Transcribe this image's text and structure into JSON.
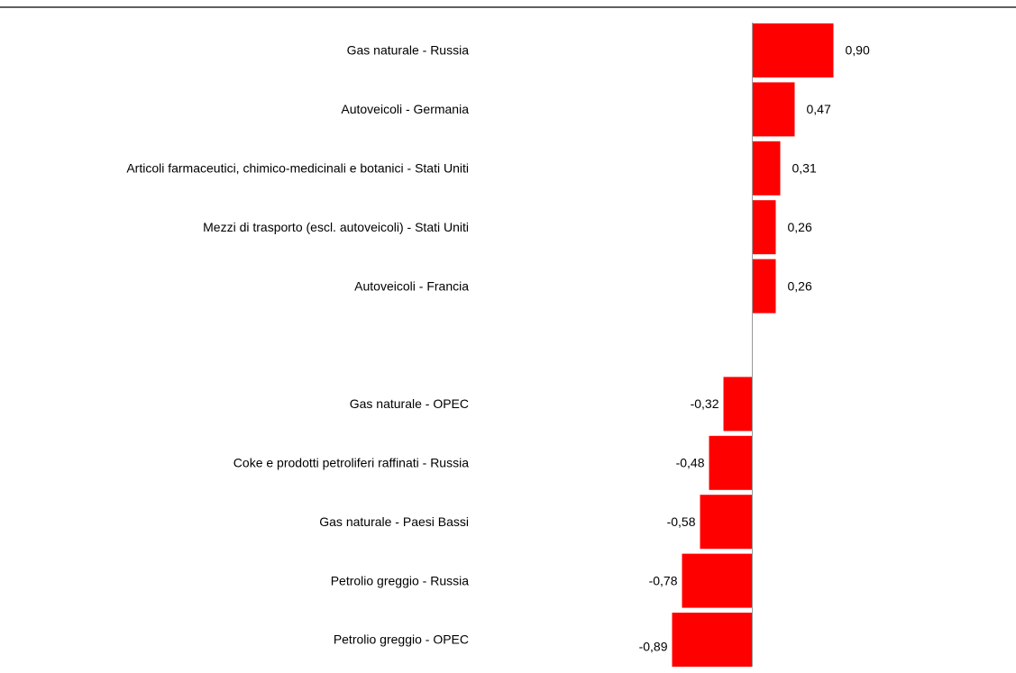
{
  "chart_data": {
    "type": "bar",
    "orientation": "horizontal",
    "title": "",
    "xlabel": "",
    "ylabel": "",
    "grid": false,
    "legend": "none",
    "bar_color": "#ff0000",
    "categories": [
      "Gas naturale - Russia",
      "Autoveicoli - Germania",
      "Articoli farmaceutici, chimico-medicinali e botanici - Stati Uniti",
      "Mezzi di trasporto (escl. autoveicoli) - Stati Uniti",
      "Autoveicoli - Francia",
      "",
      "Gas naturale - OPEC",
      "Coke e prodotti petroliferi raffinati - Russia",
      "Gas naturale - Paesi Bassi",
      "Petrolio greggio - Russia",
      "Petrolio greggio - OPEC"
    ],
    "values": [
      0.9,
      0.47,
      0.31,
      0.26,
      0.26,
      null,
      -0.32,
      -0.48,
      -0.58,
      -0.78,
      -0.89
    ],
    "value_labels": [
      "0,90",
      "0,47",
      "0,31",
      "0,26",
      "0,26",
      "",
      "-0,32",
      "-0,48",
      "-0,58",
      "-0,78",
      "-0,89"
    ]
  }
}
